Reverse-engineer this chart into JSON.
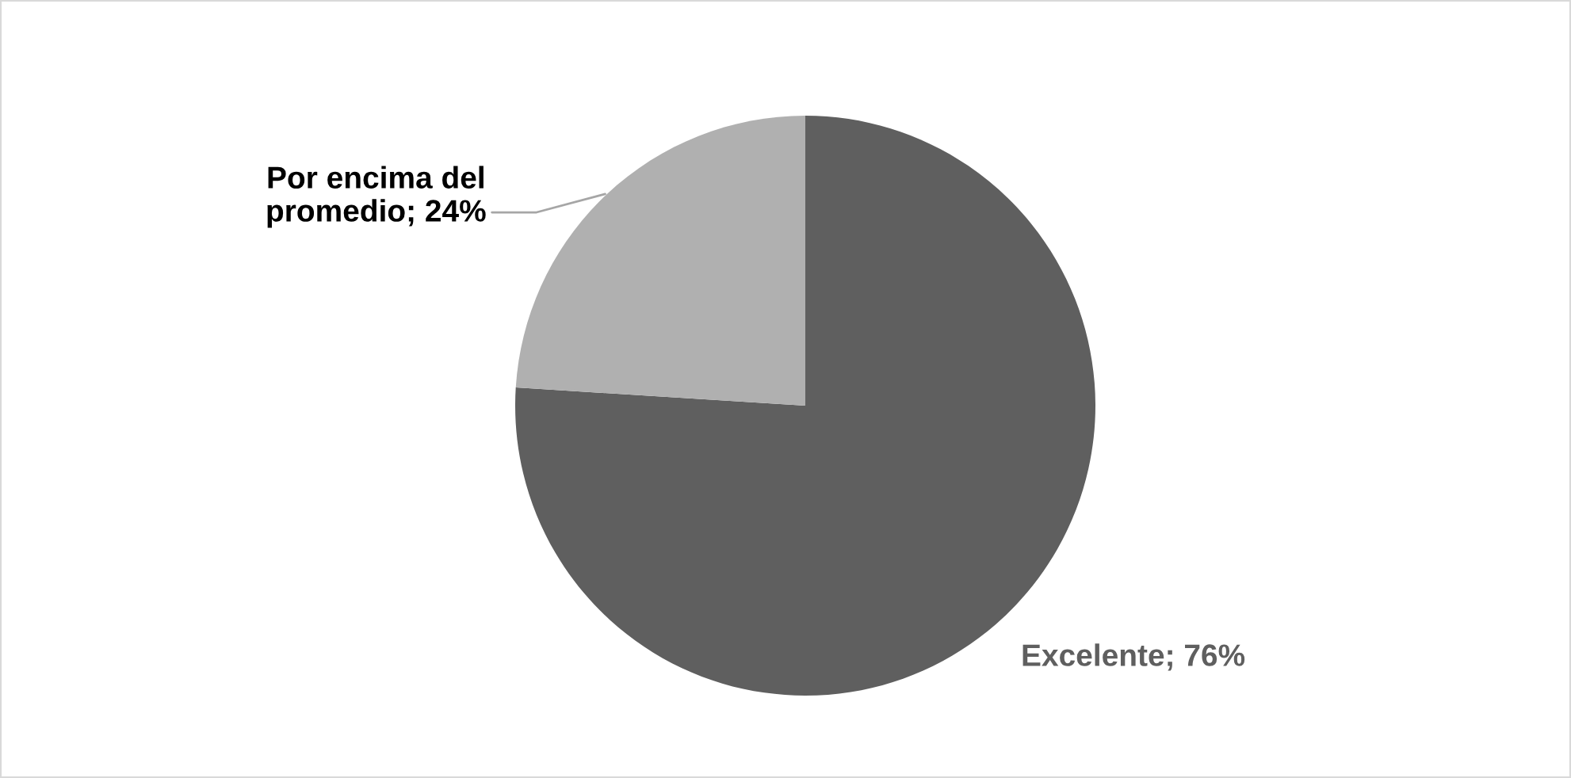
{
  "chart_data": {
    "type": "pie",
    "categories": [
      "Excelente",
      "Por encima del promedio"
    ],
    "values": [
      76,
      24
    ],
    "colors": [
      "#5f5f5f",
      "#b0b0b0"
    ],
    "value_labels": [
      "76%",
      "24%"
    ],
    "legend": false
  }
}
